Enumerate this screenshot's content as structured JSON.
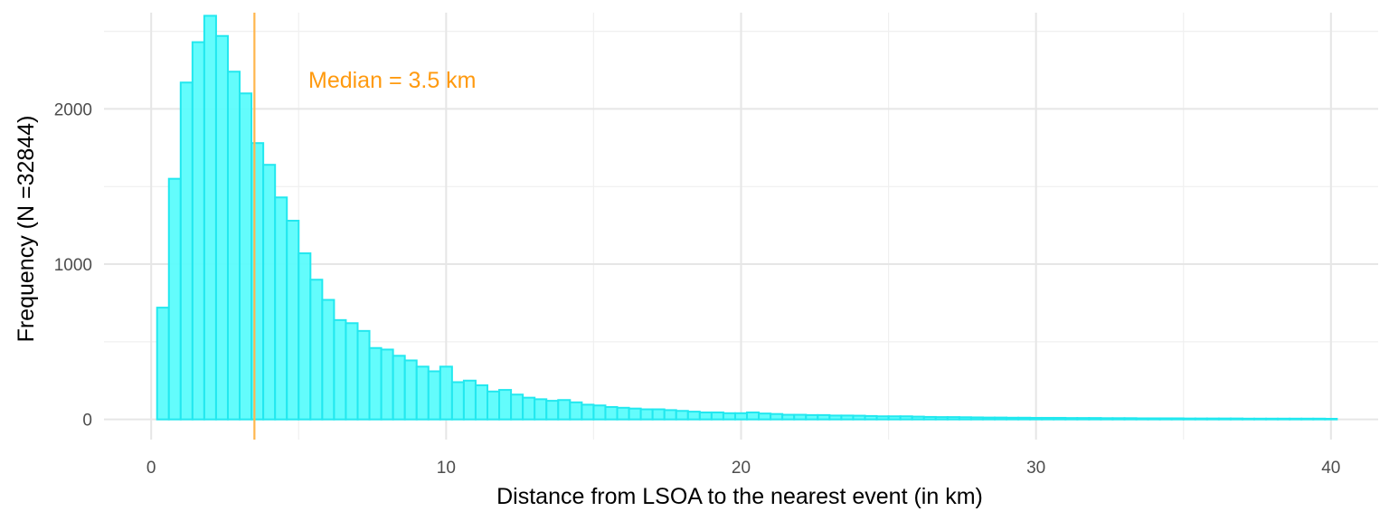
{
  "chart_data": {
    "type": "bar",
    "subtype": "histogram",
    "xlabel": "Distance from LSOA to the nearest event (in km)",
    "ylabel": "Frequency (N =32844)",
    "xlim": [
      -1.6,
      41.6
    ],
    "ylim": [
      -130,
      2620
    ],
    "x_ticks": [
      0,
      10,
      20,
      30,
      40
    ],
    "y_ticks": [
      0,
      1000,
      2000
    ],
    "grid": true,
    "bin_width": 0.4,
    "bins_start": 0.2,
    "values": [
      720,
      1550,
      2170,
      2430,
      2600,
      2470,
      2240,
      2100,
      1780,
      1640,
      1430,
      1280,
      1070,
      900,
      770,
      640,
      620,
      570,
      460,
      450,
      410,
      380,
      340,
      310,
      340,
      240,
      250,
      220,
      180,
      190,
      160,
      140,
      130,
      120,
      125,
      110,
      95,
      90,
      80,
      75,
      70,
      65,
      65,
      60,
      55,
      50,
      45,
      45,
      40,
      40,
      45,
      38,
      35,
      30,
      30,
      28,
      28,
      25,
      25,
      24,
      22,
      20,
      20,
      20,
      18,
      16,
      15,
      15,
      14,
      13,
      12,
      12,
      11,
      11,
      10,
      10,
      10,
      9,
      9,
      9,
      8,
      8,
      8,
      7,
      7,
      7,
      7,
      6,
      6,
      6,
      6,
      6,
      5,
      5,
      5,
      5,
      5,
      5,
      5,
      4
    ],
    "median": 3.5,
    "annotation": "Median = 3.5 km",
    "colors": {
      "bar_fill": "#5bfcfc",
      "bar_stroke": "#22e8ef",
      "median_line": "#ffb64d",
      "annotation_text": "#ff9a0f",
      "grid": "#e6e6e6"
    }
  }
}
